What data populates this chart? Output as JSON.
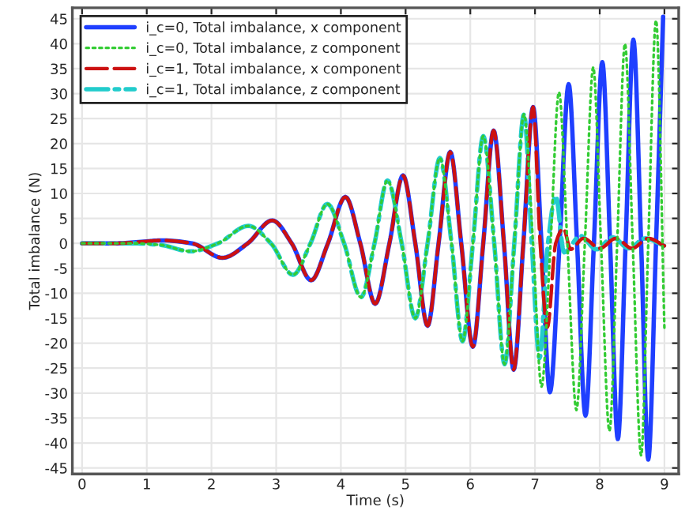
{
  "chart_data": {
    "type": "line",
    "xlabel": "Time (s)",
    "ylabel": "Total imbalance (N)",
    "xlim": [
      -0.15,
      9.22
    ],
    "ylim": [
      -46.2,
      47.2
    ],
    "xticks": [
      0,
      1,
      2,
      3,
      4,
      5,
      6,
      7,
      8,
      9
    ],
    "yticks": [
      -45,
      -40,
      -35,
      -30,
      -25,
      -20,
      -15,
      -10,
      -5,
      0,
      5,
      10,
      15,
      20,
      25,
      30,
      35,
      40,
      45
    ],
    "grid": true,
    "legend": "top left",
    "marker": "none",
    "series": [
      {
        "name": "i_c=0, Total imbalance, x component",
        "color": "#1f3fff",
        "line_style": "solid",
        "x": [
          0,
          0.5,
          1.0,
          1.23,
          1.7,
          2.17,
          2.56,
          2.94,
          3.24,
          3.54,
          3.8,
          4.07,
          4.3,
          4.53,
          4.75,
          4.96,
          5.15,
          5.34,
          5.51,
          5.69,
          5.86,
          6.04,
          6.2,
          6.36,
          6.52,
          6.67,
          6.82,
          6.97,
          7.1,
          7.23,
          7.38,
          7.52,
          7.65,
          7.78,
          7.91,
          8.04,
          8.16,
          8.28,
          8.4,
          8.52,
          8.64,
          8.75,
          8.87,
          8.98
        ],
        "values": [
          0,
          0,
          0.4,
          0.6,
          0,
          -2.9,
          0,
          4.6,
          0,
          -7.4,
          0,
          9.3,
          0,
          -12.1,
          0,
          13.6,
          0,
          -16.5,
          0,
          18.3,
          0,
          -20.7,
          0,
          22.6,
          0,
          -25.3,
          0,
          27.3,
          0,
          -29.8,
          0,
          31.9,
          0,
          -34.5,
          0,
          36.3,
          0,
          -39.2,
          0,
          40.8,
          0,
          -43.3,
          0,
          45.4
        ]
      },
      {
        "name": "i_c=0, Total imbalance, z component",
        "color": "#33cc33",
        "line_style": "dotted",
        "x": [
          0,
          0.8,
          1.2,
          1.68,
          2.1,
          2.57,
          2.92,
          3.26,
          3.53,
          3.79,
          4.05,
          4.31,
          4.52,
          4.72,
          4.94,
          5.15,
          5.34,
          5.53,
          5.71,
          5.88,
          6.04,
          6.2,
          6.37,
          6.53,
          6.68,
          6.83,
          6.97,
          7.1,
          7.24,
          7.37,
          7.5,
          7.64,
          7.77,
          7.9,
          8.02,
          8.15,
          8.27,
          8.39,
          8.51,
          8.64,
          8.75,
          8.87,
          9.0
        ],
        "values": [
          0,
          0,
          -0.3,
          -1.6,
          0,
          3.5,
          0,
          -6.3,
          0,
          7.9,
          0,
          -10.8,
          0,
          12.6,
          0,
          -15,
          0,
          17.1,
          0,
          -19.6,
          0,
          21.5,
          0,
          -24.2,
          0,
          25.9,
          0,
          -28.7,
          0,
          30.3,
          0,
          -33.4,
          0,
          35.3,
          0,
          -37.6,
          0,
          40,
          0,
          -42.5,
          0,
          44.7,
          -17
        ]
      },
      {
        "name": "i_c=1, Total imbalance, x component",
        "color": "#cc1111",
        "line_style": "dashed",
        "x": [
          0,
          0.5,
          1.0,
          1.23,
          1.7,
          2.17,
          2.56,
          2.94,
          3.24,
          3.54,
          3.8,
          4.07,
          4.3,
          4.53,
          4.75,
          4.96,
          5.15,
          5.34,
          5.51,
          5.69,
          5.86,
          6.04,
          6.2,
          6.36,
          6.52,
          6.67,
          6.82,
          6.97,
          7.08,
          7.19,
          7.32,
          7.44,
          7.55,
          7.75,
          8.0,
          8.25,
          8.5,
          8.75,
          9.0
        ],
        "values": [
          0,
          0,
          0.4,
          0.6,
          0,
          -2.9,
          0,
          4.6,
          0,
          -7.4,
          0,
          9.3,
          0,
          -12.1,
          0,
          13.6,
          0,
          -16.5,
          0,
          18.3,
          0,
          -20.7,
          0,
          22.6,
          0,
          -25.3,
          0,
          27.3,
          0,
          -16.8,
          0,
          3.0,
          -1.2,
          1.0,
          -1.0,
          1.0,
          -1.0,
          1.0,
          -0.5
        ]
      },
      {
        "name": "i_c=1, Total imbalance, z component",
        "color": "#22cccc",
        "line_style": "dashdot",
        "x": [
          0,
          0.8,
          1.2,
          1.68,
          2.1,
          2.57,
          2.92,
          3.26,
          3.53,
          3.79,
          4.05,
          4.31,
          4.52,
          4.72,
          4.94,
          5.15,
          5.34,
          5.53,
          5.71,
          5.88,
          6.04,
          6.2,
          6.37,
          6.53,
          6.68,
          6.83,
          6.95,
          7.07,
          7.2,
          7.32,
          7.45,
          7.7,
          7.95,
          8.2,
          8.45,
          8.7,
          9.0
        ],
        "values": [
          0,
          0,
          -0.3,
          -1.6,
          0,
          3.5,
          0,
          -6.3,
          0,
          7.9,
          0,
          -10.8,
          0,
          12.6,
          0,
          -15,
          0,
          17.1,
          0,
          -19.6,
          0,
          21.5,
          0,
          -24.2,
          0,
          25.9,
          0,
          -23,
          0,
          9.5,
          -1.8,
          1.5,
          -1.2,
          1.2,
          -1.0,
          1.0,
          -0.5
        ]
      }
    ]
  }
}
